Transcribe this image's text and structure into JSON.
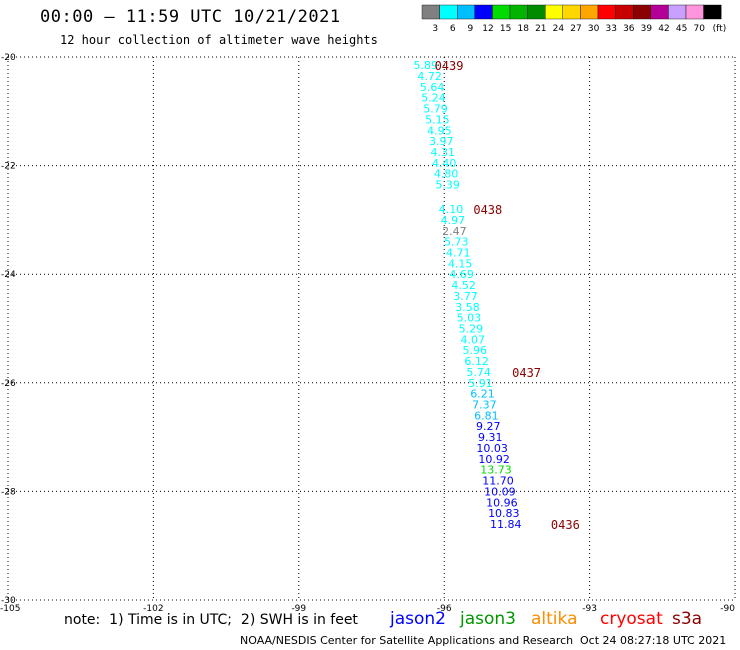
{
  "header": {
    "title": "00:00 – 11:59 UTC 10/21/2021",
    "subtitle": "12 hour collection of altimeter wave heights"
  },
  "colorbar": {
    "bins": [
      {
        "label": "3",
        "color": "#808080"
      },
      {
        "label": "6",
        "color": "#00ffff"
      },
      {
        "label": "9",
        "color": "#00bfff"
      },
      {
        "label": "12",
        "color": "#0000ff"
      },
      {
        "label": "15",
        "color": "#00dc00"
      },
      {
        "label": "18",
        "color": "#00b400"
      },
      {
        "label": "21",
        "color": "#008c00"
      },
      {
        "label": "24",
        "color": "#ffff00"
      },
      {
        "label": "27",
        "color": "#ffd700"
      },
      {
        "label": "30",
        "color": "#ffa500"
      },
      {
        "label": "33",
        "color": "#ff0000"
      },
      {
        "label": "36",
        "color": "#c80000"
      },
      {
        "label": "39",
        "color": "#8b0000"
      },
      {
        "label": "42",
        "color": "#b40096"
      },
      {
        "label": "45",
        "color": "#c8a0ff"
      },
      {
        "label": "70",
        "color": "#ff96dc"
      },
      {
        "label": "(ft)",
        "color": "#000000"
      }
    ]
  },
  "footer": {
    "note": "note:  1) Time is in UTC;  2) SWH is in feet",
    "credit": "NOAA/NESDIS Center for Satellite Applications and Research",
    "date": "Oct 24 08:27:18 UTC 2021",
    "satellites": [
      {
        "name": "jason2",
        "color": "#0000ff"
      },
      {
        "name": "jason3",
        "color": "#009600"
      },
      {
        "name": "altika",
        "color": "#ff8c00"
      },
      {
        "name": "cryosat",
        "color": "#ff0000"
      },
      {
        "name": "s3a",
        "color": "#8b0000"
      }
    ]
  },
  "chart_data": {
    "type": "scatter",
    "title": "00:00 – 11:59 UTC 10/21/2021",
    "subtitle": "12 hour collection of altimeter wave heights",
    "xlim": [
      -105,
      -90
    ],
    "ylim": [
      -30,
      -20
    ],
    "x_ticks": [
      "-105",
      "-102",
      "-99",
      "-96",
      "-93",
      "-90"
    ],
    "y_ticks": [
      "-20",
      "-22",
      "-24",
      "-26",
      "-28",
      "-30"
    ],
    "grid": true,
    "units": "ft",
    "points": [
      {
        "x": -96.38,
        "y": -20.15,
        "value": "5.89",
        "color": "#00ffff"
      },
      {
        "x": -96.3,
        "y": -20.35,
        "value": "4.72",
        "color": "#00ffff"
      },
      {
        "x": -96.25,
        "y": -20.55,
        "value": "5.64",
        "color": "#00ffff"
      },
      {
        "x": -96.22,
        "y": -20.75,
        "value": "5.24",
        "color": "#00ffff"
      },
      {
        "x": -96.18,
        "y": -20.95,
        "value": "5.79",
        "color": "#00ffff"
      },
      {
        "x": -96.14,
        "y": -21.15,
        "value": "5.15",
        "color": "#00ffff"
      },
      {
        "x": -96.1,
        "y": -21.35,
        "value": "4.95",
        "color": "#00ffff"
      },
      {
        "x": -96.06,
        "y": -21.55,
        "value": "3.97",
        "color": "#00ffff"
      },
      {
        "x": -96.03,
        "y": -21.75,
        "value": "4.31",
        "color": "#00ffff"
      },
      {
        "x": -96.0,
        "y": -21.95,
        "value": "4.40",
        "color": "#00ffff"
      },
      {
        "x": -95.96,
        "y": -22.15,
        "value": "4.80",
        "color": "#00ffff"
      },
      {
        "x": -95.93,
        "y": -22.35,
        "value": "5.39",
        "color": "#00ffff"
      },
      {
        "x": -95.86,
        "y": -22.8,
        "value": "4.10",
        "color": "#00ffff"
      },
      {
        "x": -95.82,
        "y": -23.0,
        "value": "4.97",
        "color": "#00ffff"
      },
      {
        "x": -95.79,
        "y": -23.2,
        "value": "2.47",
        "color": "#808080"
      },
      {
        "x": -95.75,
        "y": -23.4,
        "value": "5.73",
        "color": "#00ffff"
      },
      {
        "x": -95.71,
        "y": -23.6,
        "value": "4.71",
        "color": "#00ffff"
      },
      {
        "x": -95.67,
        "y": -23.8,
        "value": "4.15",
        "color": "#00ffff"
      },
      {
        "x": -95.64,
        "y": -24.0,
        "value": "4.69",
        "color": "#00ffff"
      },
      {
        "x": -95.6,
        "y": -24.2,
        "value": "4.52",
        "color": "#00ffff"
      },
      {
        "x": -95.56,
        "y": -24.4,
        "value": "3.77",
        "color": "#00ffff"
      },
      {
        "x": -95.52,
        "y": -24.6,
        "value": "3.58",
        "color": "#00ffff"
      },
      {
        "x": -95.49,
        "y": -24.8,
        "value": "5.03",
        "color": "#00ffff"
      },
      {
        "x": -95.45,
        "y": -25.0,
        "value": "5.29",
        "color": "#00ffff"
      },
      {
        "x": -95.41,
        "y": -25.2,
        "value": "4.07",
        "color": "#00ffff"
      },
      {
        "x": -95.37,
        "y": -25.4,
        "value": "5.96",
        "color": "#00ffff"
      },
      {
        "x": -95.33,
        "y": -25.6,
        "value": "6.12",
        "color": "#00ffff"
      },
      {
        "x": -95.29,
        "y": -25.8,
        "value": "5.74",
        "color": "#00ffff"
      },
      {
        "x": -95.25,
        "y": -26.0,
        "value": "5.91",
        "color": "#00ffff"
      },
      {
        "x": -95.21,
        "y": -26.2,
        "value": "6.21",
        "color": "#00bfff"
      },
      {
        "x": -95.17,
        "y": -26.4,
        "value": "7.37",
        "color": "#00bfff"
      },
      {
        "x": -95.13,
        "y": -26.6,
        "value": "6.81",
        "color": "#00bfff"
      },
      {
        "x": -95.09,
        "y": -26.8,
        "value": "9.27",
        "color": "#0000ff"
      },
      {
        "x": -95.05,
        "y": -27.0,
        "value": "9.31",
        "color": "#0000ff"
      },
      {
        "x": -95.01,
        "y": -27.2,
        "value": "10.03",
        "color": "#0000ff"
      },
      {
        "x": -94.97,
        "y": -27.4,
        "value": "10.92",
        "color": "#0000ff"
      },
      {
        "x": -94.93,
        "y": -27.6,
        "value": "13.73",
        "color": "#00dc00"
      },
      {
        "x": -94.89,
        "y": -27.8,
        "value": "11.70",
        "color": "#0000ff"
      },
      {
        "x": -94.85,
        "y": -28.0,
        "value": "10.09",
        "color": "#0000ff"
      },
      {
        "x": -94.81,
        "y": -28.2,
        "value": "10.96",
        "color": "#0000ff"
      },
      {
        "x": -94.77,
        "y": -28.4,
        "value": "10.83",
        "color": "#0000ff"
      },
      {
        "x": -94.73,
        "y": -28.6,
        "value": "11.84",
        "color": "#0000ff"
      }
    ],
    "annotations": [
      {
        "x": -95.9,
        "y": -20.15,
        "text": "0439",
        "color": "#8b0000"
      },
      {
        "x": -95.1,
        "y": -22.8,
        "text": "0438",
        "color": "#8b0000"
      },
      {
        "x": -94.3,
        "y": -25.8,
        "text": "0437",
        "color": "#8b0000"
      },
      {
        "x": -93.5,
        "y": -28.6,
        "text": "0436",
        "color": "#8b0000"
      }
    ]
  }
}
